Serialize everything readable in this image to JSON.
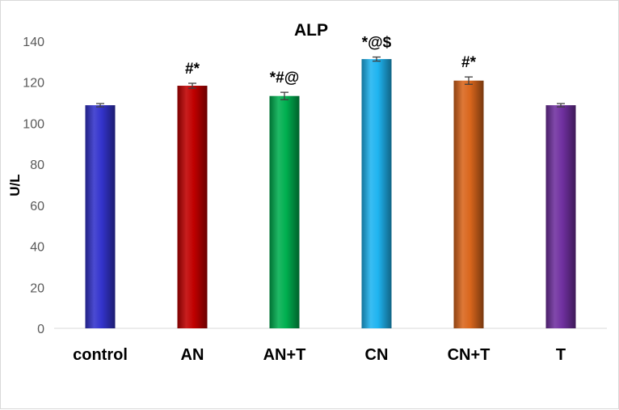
{
  "chart_data": {
    "type": "bar",
    "title": "ALP",
    "xlabel": "",
    "ylabel": "U/L",
    "ylim": [
      0,
      140
    ],
    "yticks": [
      0,
      20,
      40,
      60,
      80,
      100,
      120,
      140
    ],
    "grid": false,
    "categories": [
      "control",
      "AN",
      "AN+T",
      "CN",
      "CN+T",
      "T"
    ],
    "values": [
      108.8,
      118.3,
      113.3,
      131.3,
      120.8,
      108.8
    ],
    "errors": [
      0.8,
      1.2,
      1.8,
      1.0,
      1.8,
      0.8
    ],
    "annotations": [
      "",
      "#*",
      "*#@",
      "*@$",
      "#*",
      ""
    ],
    "colors": [
      "#3333cc",
      "#c00000",
      "#00b050",
      "#1fb4f0",
      "#d9661c",
      "#7030a0"
    ]
  }
}
